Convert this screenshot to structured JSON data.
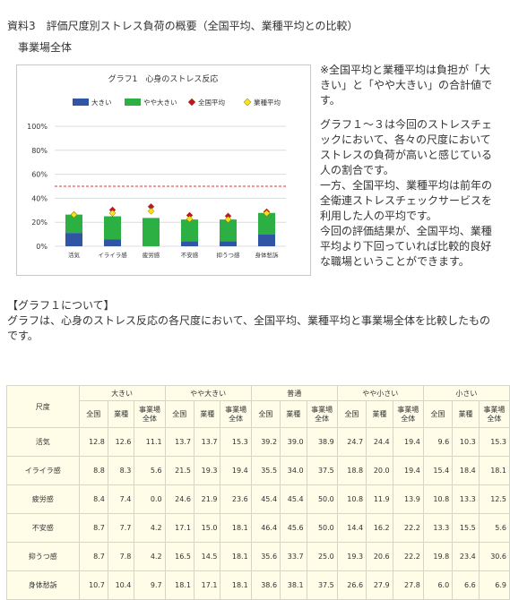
{
  "doc": {
    "title": "資料3　評価尺度別ストレス負荷の概要（全国平均、業種平均との比較）",
    "subtitle": "事業場全体"
  },
  "side_note": {
    "p1": "※全国平均と業種平均は負担が「大きい」と「やや大きい」の合計値です。",
    "p2": "グラフ１～３は今回のストレスチェックにおいて、各々の尺度においてストレスの負荷が高いと感じている人の割合です。",
    "p3": "一方、全国平均、業種平均は前年の全衛連ストレスチェックサービスを利用した人の平均です。",
    "p4": "今回の評価結果が、全国平均、業種平均より下回っていれば比較的良好な職場ということができます。"
  },
  "section": {
    "heading": "【グラフ１について】",
    "text": "グラフは、心身のストレス反応の各尺度において、全国平均、業種平均と事業場全体を比較したものです。"
  },
  "chart_data": {
    "type": "bar",
    "title": "グラフ1　心身のストレス反応",
    "categories": [
      "活気",
      "イライラ感",
      "疲労感",
      "不安感",
      "抑うつ感",
      "身体愁訴"
    ],
    "series": [
      {
        "name": "大きい",
        "values": [
          11.1,
          5.6,
          0.0,
          4.2,
          4.2,
          9.7
        ],
        "color": "#2f55a4"
      },
      {
        "name": "やや大きい",
        "values": [
          15.3,
          19.4,
          23.6,
          18.1,
          18.1,
          18.1
        ],
        "color": "#2db043"
      },
      {
        "name": "全国平均",
        "values": [
          26.5,
          30.3,
          33.0,
          25.8,
          25.2,
          28.8
        ],
        "color": "#c0142b",
        "marker": "diamond"
      },
      {
        "name": "業種平均",
        "values": [
          26.3,
          27.6,
          29.3,
          22.7,
          22.3,
          27.5
        ],
        "color": "#f2e21c",
        "marker": "diamond"
      }
    ],
    "reference_line": {
      "value": 50,
      "color": "#e03030",
      "style": "dashed"
    },
    "yticks": [
      "0%",
      "20%",
      "40%",
      "60%",
      "80%",
      "100%"
    ],
    "ylim": [
      0,
      100
    ],
    "grid": true,
    "legend": "top"
  },
  "table": {
    "row_header_label": "尺度",
    "groups": [
      "大きい",
      "やや大きい",
      "普通",
      "やや小さい",
      "小さい"
    ],
    "subcolumns": [
      "全国",
      "業種",
      "事業場全体"
    ],
    "rows": [
      {
        "label": "活気",
        "values": [
          "12.8",
          "12.6",
          "11.1",
          "13.7",
          "13.7",
          "15.3",
          "39.2",
          "39.0",
          "38.9",
          "24.7",
          "24.4",
          "19.4",
          "9.6",
          "10.3",
          "15.3"
        ]
      },
      {
        "label": "イライラ感",
        "values": [
          "8.8",
          "8.3",
          "5.6",
          "21.5",
          "19.3",
          "19.4",
          "35.5",
          "34.0",
          "37.5",
          "18.8",
          "20.0",
          "19.4",
          "15.4",
          "18.4",
          "18.1"
        ]
      },
      {
        "label": "疲労感",
        "values": [
          "8.4",
          "7.4",
          "0.0",
          "24.6",
          "21.9",
          "23.6",
          "45.4",
          "45.4",
          "50.0",
          "10.8",
          "11.9",
          "13.9",
          "10.8",
          "13.3",
          "12.5"
        ]
      },
      {
        "label": "不安感",
        "values": [
          "8.7",
          "7.7",
          "4.2",
          "17.1",
          "15.0",
          "18.1",
          "46.4",
          "45.6",
          "50.0",
          "14.4",
          "16.2",
          "22.2",
          "13.3",
          "15.5",
          "5.6"
        ]
      },
      {
        "label": "抑うつ感",
        "values": [
          "8.7",
          "7.8",
          "4.2",
          "16.5",
          "14.5",
          "18.1",
          "35.6",
          "33.7",
          "25.0",
          "19.3",
          "20.6",
          "22.2",
          "19.8",
          "23.4",
          "30.6"
        ]
      },
      {
        "label": "身体愁訴",
        "values": [
          "10.7",
          "10.4",
          "9.7",
          "18.1",
          "17.1",
          "18.1",
          "38.6",
          "38.1",
          "37.5",
          "26.6",
          "27.9",
          "27.8",
          "6.0",
          "6.6",
          "6.9"
        ]
      }
    ]
  }
}
